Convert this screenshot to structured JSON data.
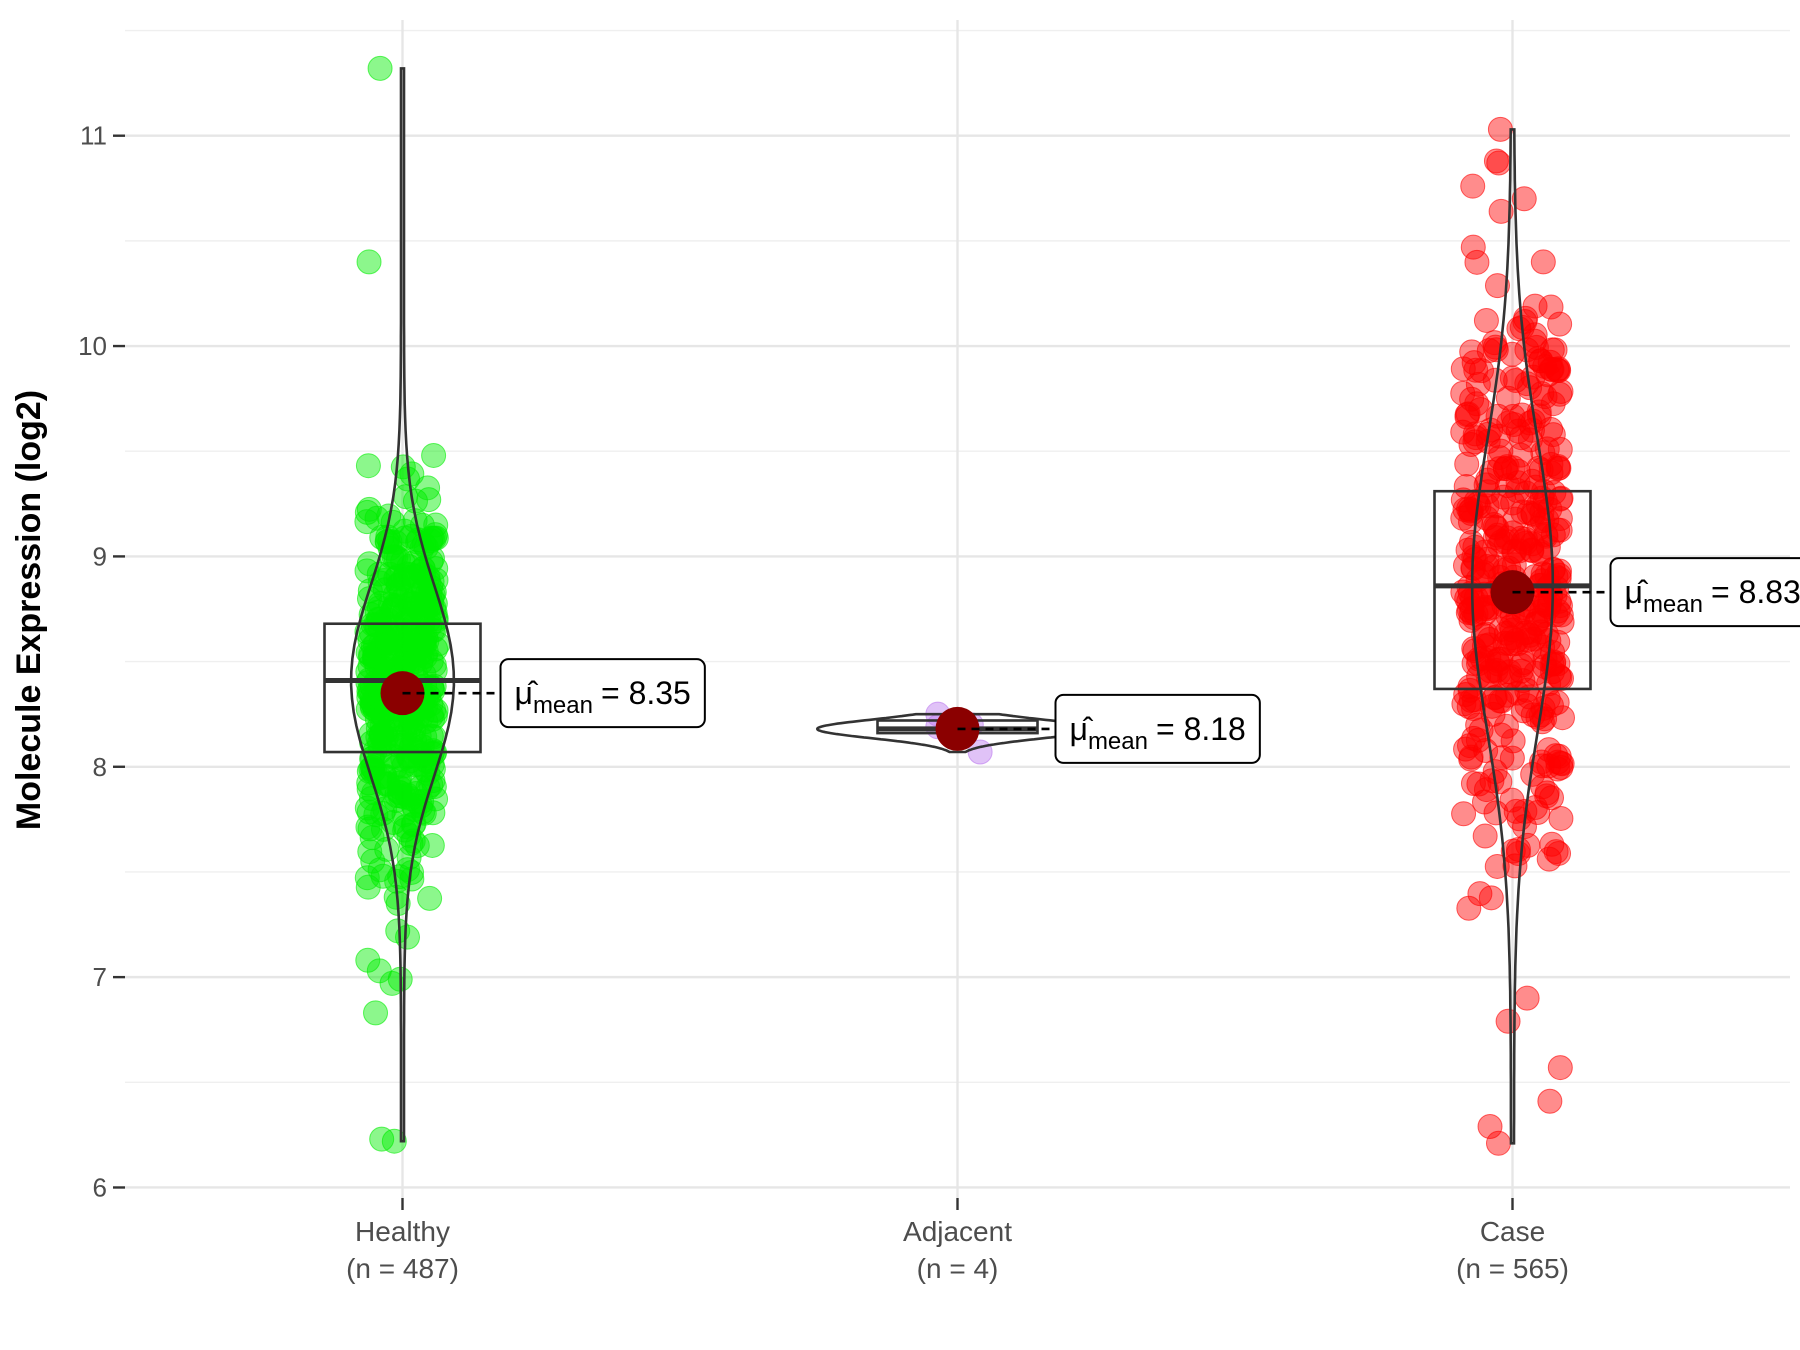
{
  "chart_data": {
    "type": "box-violin-jitter",
    "ylabel": "Molecule Expression (log2)",
    "ylim": [
      5.95,
      11.55
    ],
    "yticks": [
      6,
      7,
      8,
      9,
      10,
      11
    ],
    "grid": true,
    "mean_symbol": "μ̂",
    "mean_subscript": "mean",
    "groups": [
      {
        "name": "Healthy",
        "n_label": "(n = 487)",
        "n": 487,
        "color": "#00ee00",
        "mean": 8.35,
        "mean_label": "8.35",
        "box": {
          "q1": 8.07,
          "median": 8.41,
          "q3": 8.68
        },
        "range": [
          6.22,
          11.32
        ],
        "spread": 0.5,
        "violin_half_width": 0.09,
        "outliers": [
          11.32,
          10.4,
          9.48,
          9.27,
          9.17,
          9.12,
          7.38,
          7.35,
          7.22,
          7.19,
          7.08,
          7.03,
          6.99,
          6.97,
          6.83,
          6.23,
          6.22
        ]
      },
      {
        "name": "Adjacent",
        "n_label": "(n = 4)",
        "n": 4,
        "color": "#bb77ee",
        "mean": 8.18,
        "mean_label": "8.18",
        "box": {
          "q1": 8.16,
          "median": 8.18,
          "q3": 8.22
        },
        "range": [
          8.07,
          8.25
        ],
        "points": [
          8.25,
          8.2,
          8.19,
          8.07
        ],
        "violin_half_width": 0.25
      },
      {
        "name": "Case",
        "n_label": "(n = 565)",
        "n": 565,
        "color": "#ff0000",
        "mean": 8.83,
        "mean_label": "8.83",
        "box": {
          "q1": 8.37,
          "median": 8.86,
          "q3": 9.31
        },
        "range": [
          6.21,
          11.03
        ],
        "spread": 0.7,
        "violin_half_width": 0.07,
        "outliers": [
          11.03,
          10.88,
          10.87,
          10.76,
          10.7,
          10.64,
          10.47,
          10.4,
          6.9,
          6.79,
          6.57,
          6.41,
          6.29,
          6.21
        ]
      }
    ]
  }
}
